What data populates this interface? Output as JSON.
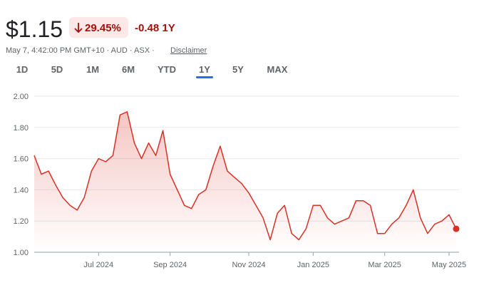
{
  "header": {
    "price": "$1.15",
    "change_pct": "29.45%",
    "change_abs": "-0.48 1Y",
    "meta": "May 7, 4:42:00 PM GMT+10 · AUD · ASX ·",
    "disclaimer": "Disclaimer",
    "tabs": [
      "1D",
      "5D",
      "1M",
      "6M",
      "YTD",
      "1Y",
      "5Y",
      "MAX"
    ],
    "selected_tab": 5
  },
  "chart_data": {
    "type": "line",
    "categories": [
      null,
      null,
      null,
      null,
      null,
      null,
      null,
      null,
      null,
      "Jul 2024",
      null,
      null,
      null,
      null,
      null,
      null,
      null,
      null,
      null,
      "Sep 2024",
      null,
      null,
      null,
      null,
      null,
      null,
      null,
      null,
      null,
      null,
      "Nov 2024",
      null,
      null,
      null,
      null,
      null,
      null,
      null,
      null,
      "Jan 2025",
      null,
      null,
      null,
      null,
      null,
      null,
      null,
      null,
      null,
      "Mar 2025",
      null,
      null,
      null,
      null,
      null,
      null,
      null,
      null,
      "May 2025",
      null
    ],
    "series": [
      {
        "color": "#d93025",
        "values": [
          1.62,
          1.5,
          1.52,
          1.43,
          1.35,
          1.3,
          1.27,
          1.35,
          1.52,
          1.6,
          1.58,
          1.62,
          1.88,
          1.9,
          1.7,
          1.6,
          1.7,
          1.62,
          1.78,
          1.5,
          1.4,
          1.3,
          1.28,
          1.37,
          1.4,
          1.55,
          1.68,
          1.52,
          1.48,
          1.44,
          1.38,
          1.3,
          1.22,
          1.08,
          1.25,
          1.3,
          1.12,
          1.08,
          1.15,
          1.3,
          1.3,
          1.22,
          1.18,
          1.2,
          1.22,
          1.33,
          1.33,
          1.3,
          1.12,
          1.12,
          1.18,
          1.22,
          1.3,
          1.4,
          1.22,
          1.12,
          1.18,
          1.2,
          1.24,
          1.15
        ]
      }
    ],
    "ylim": [
      1,
      2
    ],
    "yticks": [
      {
        "value": 1,
        "label": "1.00"
      },
      {
        "value": 1.2,
        "label": "1.20"
      },
      {
        "value": 1.4,
        "label": "1.40"
      },
      {
        "value": 1.6,
        "label": "1.60"
      },
      {
        "value": 1.8,
        "label": "1.80"
      },
      {
        "value": 2,
        "label": "2.00"
      }
    ],
    "grid": true
  }
}
